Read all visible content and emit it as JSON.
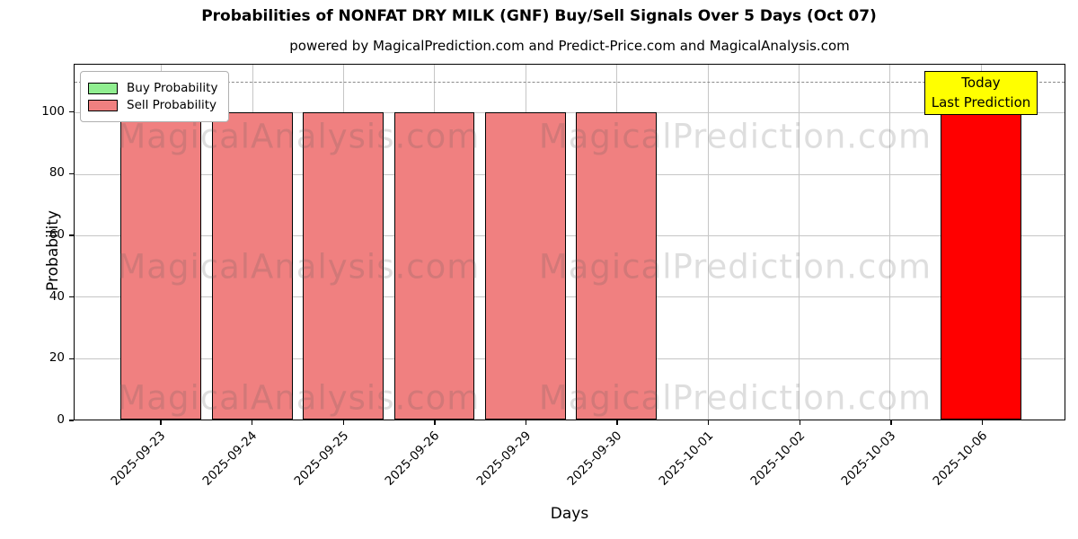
{
  "title": "Probabilities of NONFAT DRY MILK (GNF) Buy/Sell Signals Over 5 Days (Oct 07)",
  "subtitle": "powered by MagicalPrediction.com and Predict-Price.com and MagicalAnalysis.com",
  "legend": {
    "buy_label": "Buy Probability",
    "sell_label": "Sell Probability"
  },
  "annotation": {
    "line1": "Today",
    "line2": "Last Prediction"
  },
  "watermarks": {
    "left": "MagicalAnalysis.com",
    "right": "MagicalPrediction.com"
  },
  "colors": {
    "buy": "#90EE90",
    "sell": "#F08080",
    "today_bar": "#FF0000",
    "annotation_bg": "#FFFF00",
    "grid": "#C6C6C6",
    "dashed_line": "#8A8A8A"
  },
  "chart_data": {
    "type": "bar",
    "title": "Probabilities of NONFAT DRY MILK (GNF) Buy/Sell Signals Over 5 Days (Oct 07)",
    "xlabel": "Days",
    "ylabel": "Probability",
    "categories": [
      "2025-09-23",
      "2025-09-24",
      "2025-09-25",
      "2025-09-26",
      "2025-09-29",
      "2025-09-30",
      "2025-10-01",
      "2025-10-02",
      "2025-10-03",
      "2025-10-06"
    ],
    "series": [
      {
        "name": "Buy Probability",
        "color": "#90EE90",
        "values": [
          0,
          0,
          0,
          0,
          0,
          0,
          0,
          0,
          0,
          0
        ]
      },
      {
        "name": "Sell Probability",
        "color": "#F08080",
        "values": [
          100,
          100,
          100,
          100,
          100,
          100,
          0,
          0,
          0,
          100
        ]
      }
    ],
    "bar_colors": [
      "#F08080",
      "#F08080",
      "#F08080",
      "#F08080",
      "#F08080",
      "#F08080",
      "#F08080",
      "#F08080",
      "#F08080",
      "#FF0000"
    ],
    "today_index": 9,
    "ylim": [
      0,
      115.6
    ],
    "yticks": [
      0,
      20,
      40,
      60,
      80,
      100
    ],
    "dashed_line_y": 110,
    "grid": true,
    "legend_position": "upper left"
  }
}
